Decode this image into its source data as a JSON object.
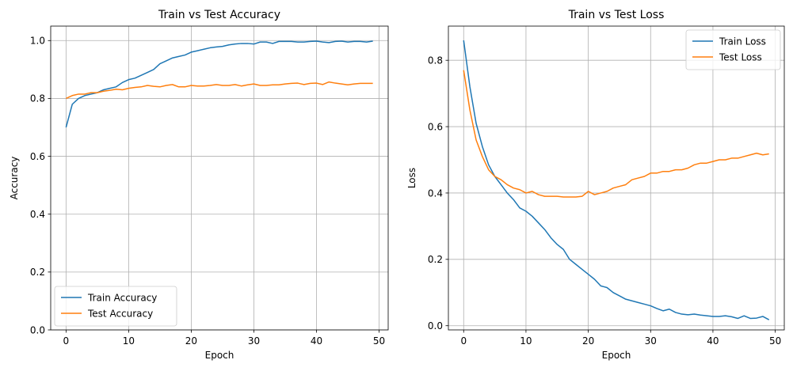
{
  "chart_data": [
    {
      "type": "line",
      "title": "Train vs Test Accuracy",
      "xlabel": "Epoch",
      "ylabel": "Accuracy",
      "xlim": [
        -2.45,
        51.45
      ],
      "ylim": [
        0.0,
        1.05
      ],
      "xticks": [
        0,
        10,
        20,
        30,
        40,
        50
      ],
      "yticks": [
        0.0,
        0.2,
        0.4,
        0.6,
        0.8,
        1.0
      ],
      "grid": true,
      "legend_position": "bottom-left",
      "x": [
        0,
        1,
        2,
        3,
        4,
        5,
        6,
        7,
        8,
        9,
        10,
        11,
        12,
        13,
        14,
        15,
        16,
        17,
        18,
        19,
        20,
        21,
        22,
        23,
        24,
        25,
        26,
        27,
        28,
        29,
        30,
        31,
        32,
        33,
        34,
        35,
        36,
        37,
        38,
        39,
        40,
        41,
        42,
        43,
        44,
        45,
        46,
        47,
        48,
        49
      ],
      "series": [
        {
          "name": "Train Accuracy",
          "color": "#1f77b4",
          "values": [
            0.7,
            0.78,
            0.8,
            0.81,
            0.815,
            0.82,
            0.83,
            0.835,
            0.84,
            0.855,
            0.865,
            0.87,
            0.88,
            0.89,
            0.9,
            0.92,
            0.93,
            0.94,
            0.945,
            0.95,
            0.96,
            0.965,
            0.97,
            0.975,
            0.978,
            0.98,
            0.985,
            0.988,
            0.99,
            0.99,
            0.988,
            0.995,
            0.995,
            0.99,
            0.997,
            0.997,
            0.997,
            0.995,
            0.995,
            0.997,
            0.998,
            0.995,
            0.993,
            0.997,
            0.998,
            0.995,
            0.997,
            0.997,
            0.995,
            0.998
          ]
        },
        {
          "name": "Test Accuracy",
          "color": "#ff7f0e",
          "values": [
            0.8,
            0.81,
            0.815,
            0.815,
            0.82,
            0.82,
            0.825,
            0.828,
            0.832,
            0.83,
            0.835,
            0.838,
            0.84,
            0.845,
            0.842,
            0.84,
            0.845,
            0.848,
            0.84,
            0.84,
            0.845,
            0.843,
            0.843,
            0.845,
            0.848,
            0.845,
            0.845,
            0.848,
            0.843,
            0.847,
            0.85,
            0.845,
            0.845,
            0.847,
            0.847,
            0.85,
            0.852,
            0.853,
            0.848,
            0.852,
            0.853,
            0.848,
            0.857,
            0.853,
            0.85,
            0.847,
            0.85,
            0.852,
            0.852,
            0.852
          ]
        }
      ]
    },
    {
      "type": "line",
      "title": "Train vs Test Loss",
      "xlabel": "Epoch",
      "ylabel": "Loss",
      "xlim": [
        -2.45,
        51.45
      ],
      "ylim": [
        -0.0126,
        0.903
      ],
      "xticks": [
        0,
        10,
        20,
        30,
        40,
        50
      ],
      "yticks": [
        0.0,
        0.2,
        0.4,
        0.6,
        0.8
      ],
      "grid": true,
      "legend_position": "top-right",
      "x": [
        0,
        1,
        2,
        3,
        4,
        5,
        6,
        7,
        8,
        9,
        10,
        11,
        12,
        13,
        14,
        15,
        16,
        17,
        18,
        19,
        20,
        21,
        22,
        23,
        24,
        25,
        26,
        27,
        28,
        29,
        30,
        31,
        32,
        33,
        34,
        35,
        36,
        37,
        38,
        39,
        40,
        41,
        42,
        43,
        44,
        45,
        46,
        47,
        48,
        49
      ],
      "series": [
        {
          "name": "Train Loss",
          "color": "#1f77b4",
          "values": [
            0.86,
            0.72,
            0.61,
            0.54,
            0.485,
            0.45,
            0.425,
            0.4,
            0.38,
            0.355,
            0.345,
            0.33,
            0.31,
            0.29,
            0.265,
            0.245,
            0.23,
            0.2,
            0.185,
            0.17,
            0.155,
            0.14,
            0.12,
            0.115,
            0.1,
            0.09,
            0.08,
            0.075,
            0.07,
            0.065,
            0.06,
            0.052,
            0.045,
            0.05,
            0.04,
            0.035,
            0.033,
            0.035,
            0.032,
            0.03,
            0.028,
            0.028,
            0.03,
            0.027,
            0.022,
            0.03,
            0.022,
            0.023,
            0.028,
            0.018
          ]
        },
        {
          "name": "Test Loss",
          "color": "#ff7f0e",
          "values": [
            0.77,
            0.65,
            0.56,
            0.51,
            0.47,
            0.45,
            0.44,
            0.425,
            0.415,
            0.41,
            0.4,
            0.405,
            0.395,
            0.39,
            0.39,
            0.39,
            0.388,
            0.388,
            0.388,
            0.39,
            0.405,
            0.395,
            0.4,
            0.405,
            0.415,
            0.42,
            0.425,
            0.44,
            0.445,
            0.45,
            0.46,
            0.46,
            0.465,
            0.465,
            0.47,
            0.47,
            0.475,
            0.485,
            0.49,
            0.49,
            0.495,
            0.5,
            0.5,
            0.505,
            0.505,
            0.51,
            0.515,
            0.52,
            0.515,
            0.518
          ]
        }
      ]
    }
  ]
}
